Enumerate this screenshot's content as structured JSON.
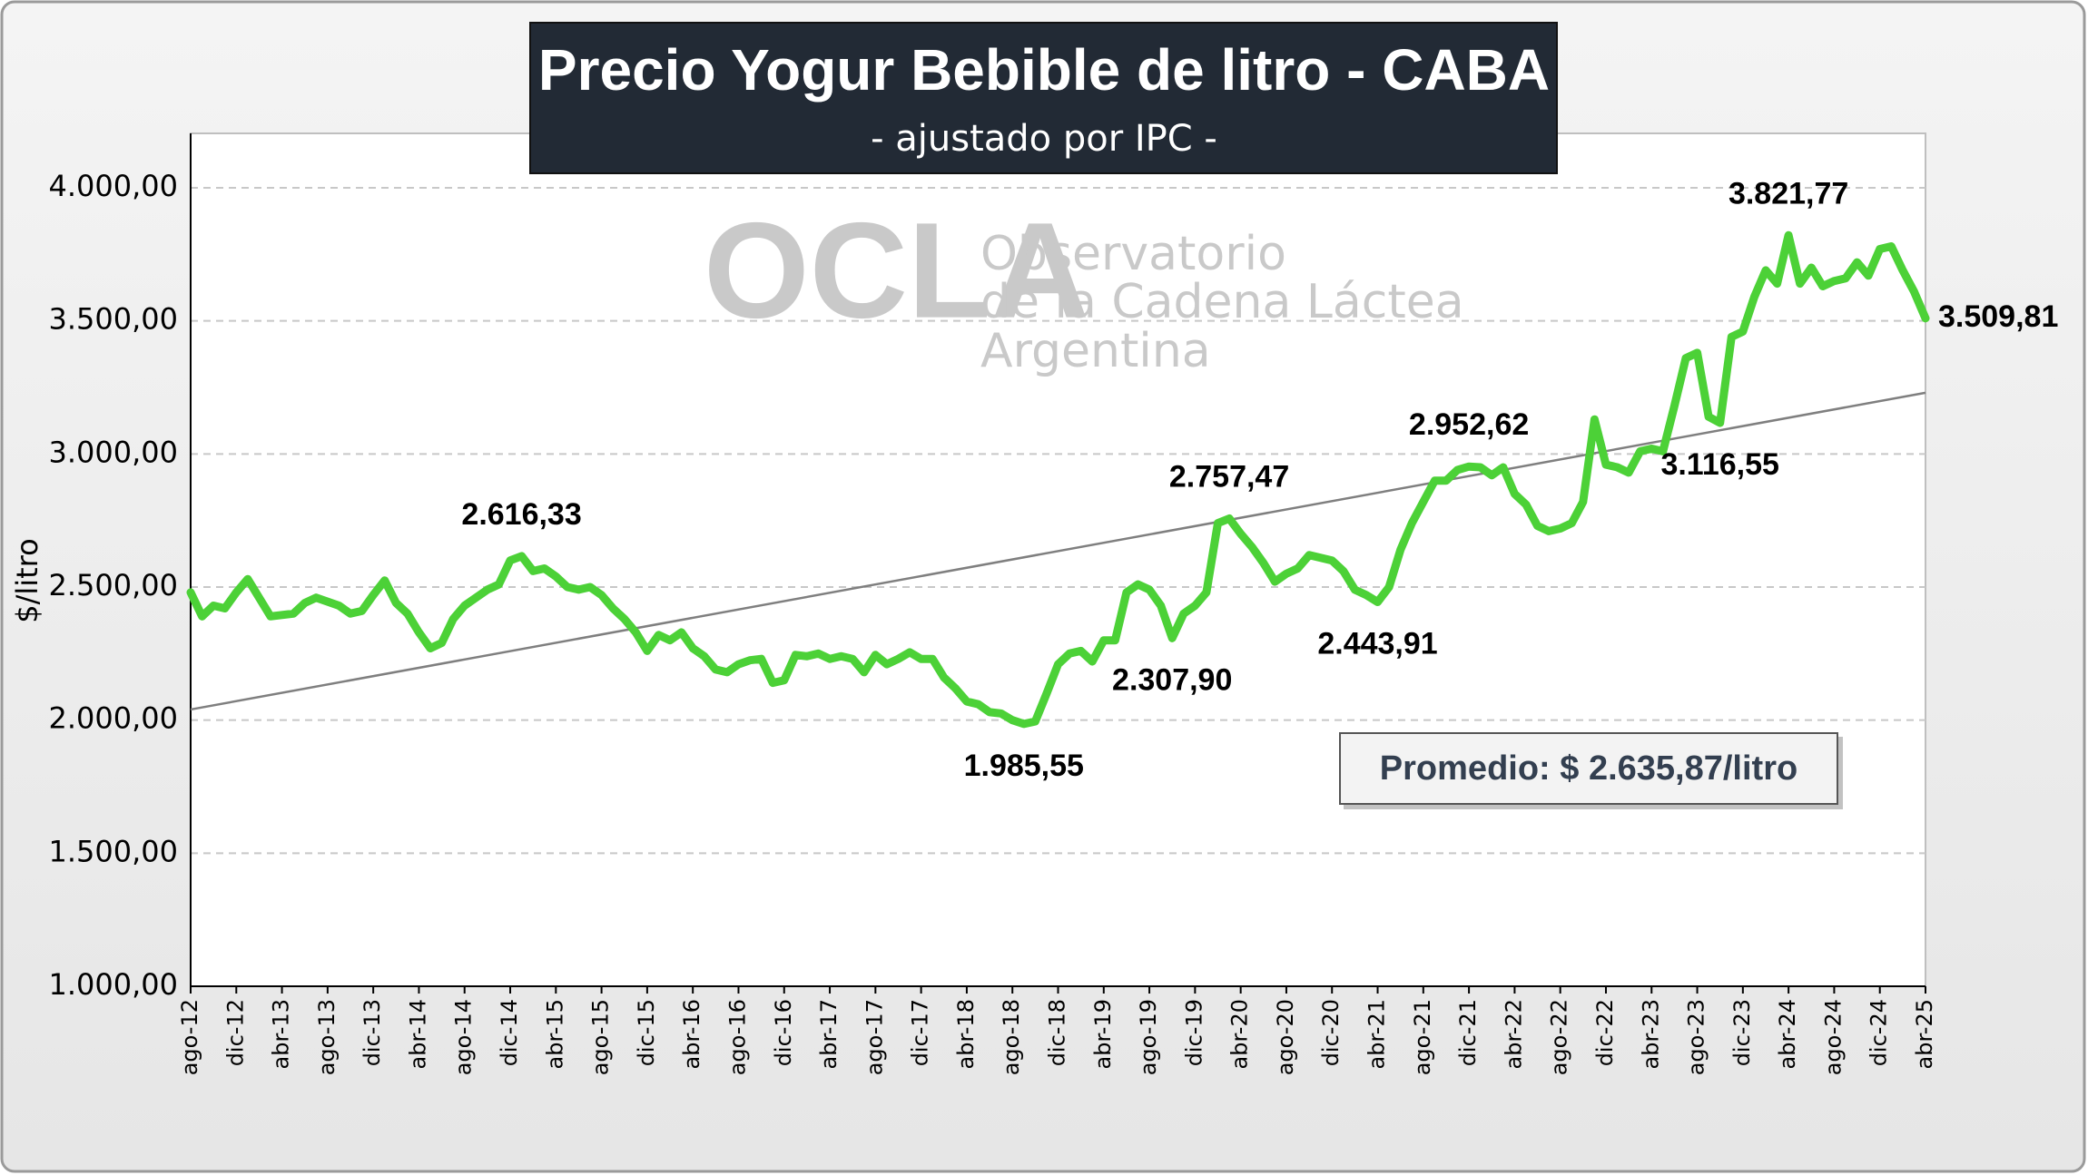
{
  "chart_data": {
    "type": "line",
    "title": "Precio Yogur Bebible de litro - CABA",
    "subtitle": "- ajustado por IPC -",
    "y_label": "$/litro",
    "annotation": "Promedio: $ 2.635,87/litro",
    "watermark": {
      "logo": "OCLA",
      "lines": [
        "Observatorio",
        "de la Cadena Láctea",
        "Argentina"
      ]
    },
    "color": "#4cd137",
    "trend_color": "#7f7f7f",
    "grid": true,
    "ylim": [
      1000,
      4000
    ],
    "yticks": [
      {
        "value": 1000,
        "label": "1.000,00"
      },
      {
        "value": 1500,
        "label": "1.500,00"
      },
      {
        "value": 2000,
        "label": "2.000,00"
      },
      {
        "value": 2500,
        "label": "2.500,00"
      },
      {
        "value": 3000,
        "label": "3.000,00"
      },
      {
        "value": 3500,
        "label": "3.500,00"
      },
      {
        "value": 4000,
        "label": "4.000,00"
      }
    ],
    "categories": [
      "ago-12",
      null,
      null,
      null,
      "dic-12",
      null,
      null,
      null,
      "abr-13",
      null,
      null,
      null,
      "ago-13",
      null,
      null,
      null,
      "dic-13",
      null,
      null,
      null,
      "abr-14",
      null,
      null,
      null,
      "ago-14",
      null,
      null,
      null,
      "dic-14",
      null,
      null,
      null,
      "abr-15",
      null,
      null,
      null,
      "ago-15",
      null,
      null,
      null,
      "dic-15",
      null,
      null,
      null,
      "abr-16",
      null,
      null,
      null,
      "ago-16",
      null,
      null,
      null,
      "dic-16",
      null,
      null,
      null,
      "abr-17",
      null,
      null,
      null,
      "ago-17",
      null,
      null,
      null,
      "dic-17",
      null,
      null,
      null,
      "abr-18",
      null,
      null,
      null,
      "ago-18",
      null,
      null,
      null,
      "dic-18",
      null,
      null,
      null,
      "abr-19",
      null,
      null,
      null,
      "ago-19",
      null,
      null,
      null,
      "dic-19",
      null,
      null,
      null,
      "abr-20",
      null,
      null,
      null,
      "ago-20",
      null,
      null,
      null,
      "dic-20",
      null,
      null,
      null,
      "abr-21",
      null,
      null,
      null,
      "ago-21",
      null,
      null,
      null,
      "dic-21",
      null,
      null,
      null,
      "abr-22",
      null,
      null,
      null,
      "ago-22",
      null,
      null,
      null,
      "dic-22",
      null,
      null,
      null,
      "abr-23",
      null,
      null,
      null,
      "ago-23",
      null,
      null,
      null,
      "dic-23",
      null,
      null,
      null,
      "abr-24",
      null,
      null,
      null,
      "ago-24",
      null,
      null,
      null,
      "dic-24",
      null,
      null,
      null,
      "abr-25"
    ],
    "values": [
      2480,
      2390,
      2430,
      2420,
      2480,
      2530,
      2460,
      2390,
      2395,
      2400,
      2440,
      2460,
      2445,
      2430,
      2400,
      2410,
      2470,
      2525,
      2440,
      2400,
      2330,
      2270,
      2290,
      2380,
      2430,
      2460,
      2490,
      2510,
      2600,
      2616.33,
      2560,
      2570,
      2540,
      2500,
      2490,
      2500,
      2470,
      2420,
      2380,
      2330,
      2260,
      2320,
      2300,
      2330,
      2270,
      2240,
      2190,
      2180,
      2210,
      2225,
      2230,
      2140,
      2150,
      2245,
      2240,
      2250,
      2230,
      2240,
      2230,
      2180,
      2245,
      2210,
      2230,
      2255,
      2230,
      2230,
      2160,
      2120,
      2070,
      2060,
      2030,
      2025,
      2000,
      1985.55,
      1995,
      2100,
      2210,
      2250,
      2260,
      2220,
      2300,
      2300,
      2480,
      2510,
      2490,
      2430,
      2307.9,
      2400,
      2430,
      2480,
      2740,
      2757.47,
      2700,
      2650,
      2590,
      2520,
      2550,
      2570,
      2620,
      2610,
      2600,
      2560,
      2490,
      2470,
      2443.91,
      2500,
      2640,
      2740,
      2820,
      2900,
      2900,
      2940,
      2952.62,
      2950,
      2920,
      2950,
      2850,
      2810,
      2730,
      2710,
      2720,
      2740,
      2820,
      3130,
      2960,
      2950,
      2930,
      3010,
      3020,
      3010,
      3180,
      3360,
      3380,
      3140,
      3116.55,
      3440,
      3460,
      3590,
      3690,
      3640,
      3821.77,
      3640,
      3700,
      3630,
      3650,
      3660,
      3720,
      3670,
      3770,
      3780,
      3690,
      3610,
      3509.81
    ],
    "value_labels": [
      null,
      null,
      null,
      null,
      null,
      null,
      null,
      null,
      null,
      null,
      null,
      null,
      null,
      null,
      null,
      null,
      null,
      null,
      null,
      null,
      null,
      null,
      null,
      null,
      null,
      null,
      null,
      null,
      null,
      "2.616,33",
      null,
      null,
      null,
      null,
      null,
      null,
      null,
      null,
      null,
      null,
      null,
      null,
      null,
      null,
      null,
      null,
      null,
      null,
      null,
      null,
      null,
      null,
      null,
      null,
      null,
      null,
      null,
      null,
      null,
      null,
      null,
      null,
      null,
      null,
      null,
      null,
      null,
      null,
      null,
      null,
      null,
      null,
      null,
      "1.985,55",
      null,
      null,
      null,
      null,
      null,
      null,
      null,
      null,
      null,
      null,
      null,
      null,
      "2.307,90",
      null,
      null,
      null,
      null,
      "2.757,47",
      null,
      null,
      null,
      null,
      null,
      null,
      null,
      null,
      null,
      null,
      null,
      null,
      "2.443,91",
      null,
      null,
      null,
      null,
      null,
      null,
      null,
      "2.952,62",
      null,
      null,
      null,
      null,
      null,
      null,
      null,
      null,
      null,
      null,
      null,
      null,
      null,
      null,
      null,
      null,
      null,
      null,
      null,
      null,
      null,
      "3.116,55",
      null,
      null,
      null,
      null,
      null,
      "3.821,77",
      null,
      null,
      null,
      null,
      null,
      null,
      null,
      null,
      null,
      null,
      null,
      "3.509,81"
    ],
    "trend": [
      2040,
      3230
    ]
  }
}
